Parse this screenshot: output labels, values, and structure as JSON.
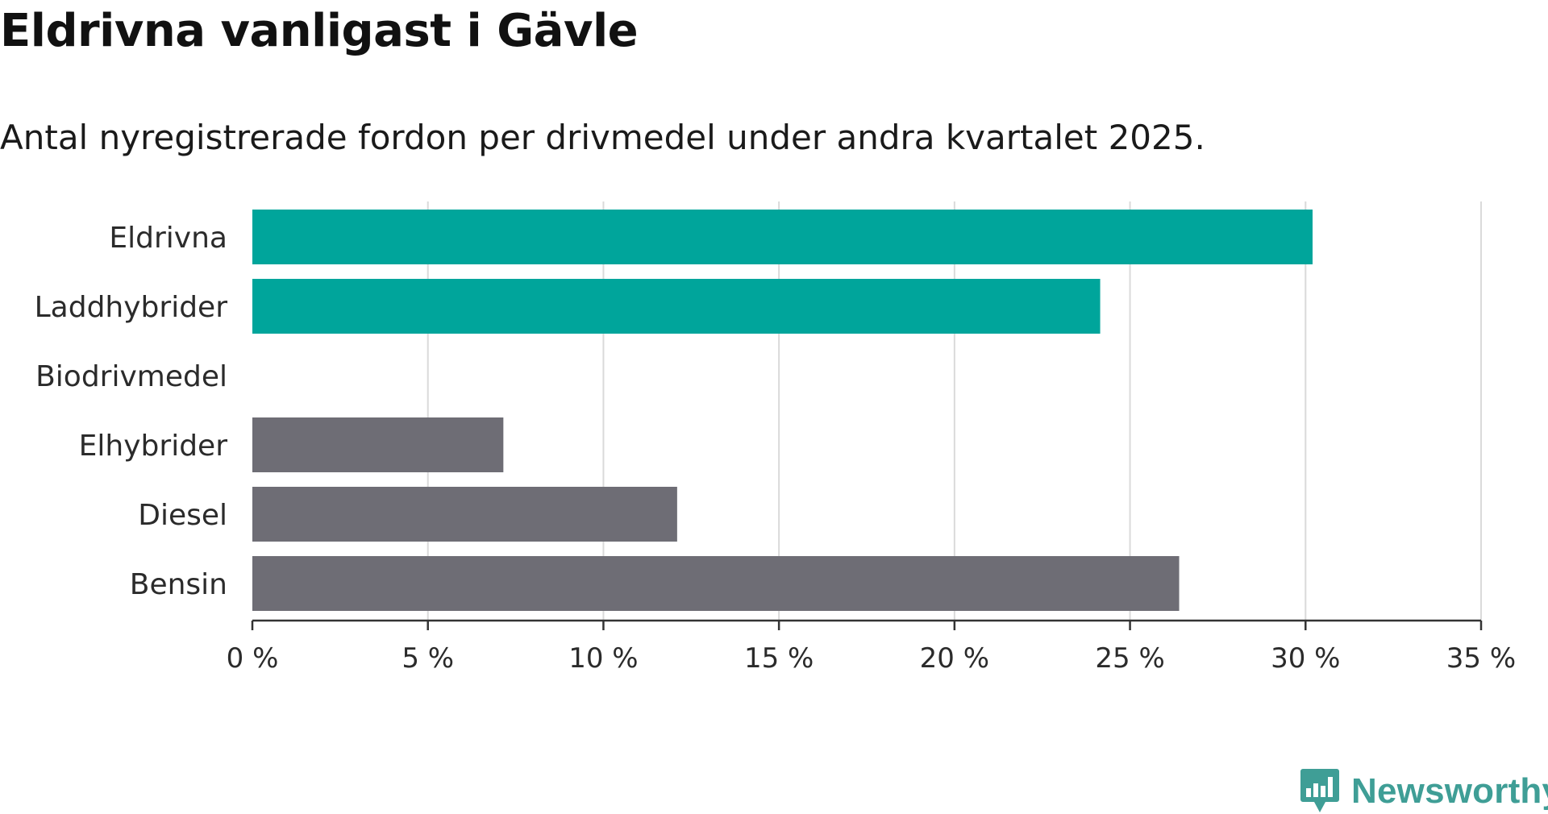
{
  "chart_data": {
    "type": "bar",
    "orientation": "horizontal",
    "title": "Eldrivna vanligast i Gävle",
    "subtitle": "Antal nyregistrerade fordon per drivmedel under andra kvartalet 2025.",
    "categories": [
      "Eldrivna",
      "Laddhybrider",
      "Biodrivmedel",
      "Elhybrider",
      "Diesel",
      "Bensin"
    ],
    "values": [
      30.2,
      24.15,
      0,
      7.15,
      12.1,
      26.4
    ],
    "colors": [
      "#00a59b",
      "#00a59b",
      "#00a59b",
      "#6e6d75",
      "#6e6d75",
      "#6e6d75"
    ],
    "xlim": [
      0,
      35
    ],
    "xticks": [
      0,
      5,
      10,
      15,
      20,
      25,
      30,
      35
    ],
    "xtick_labels": [
      "0 %",
      "5 %",
      "10 %",
      "15 %",
      "20 %",
      "25 %",
      "30 %",
      "35 %"
    ],
    "xlabel": "",
    "ylabel": "",
    "grid": true
  },
  "brand": {
    "name": "Newsworthy",
    "color": "#3f9e96",
    "icon": "bar-chart-speech-bubble-icon"
  }
}
